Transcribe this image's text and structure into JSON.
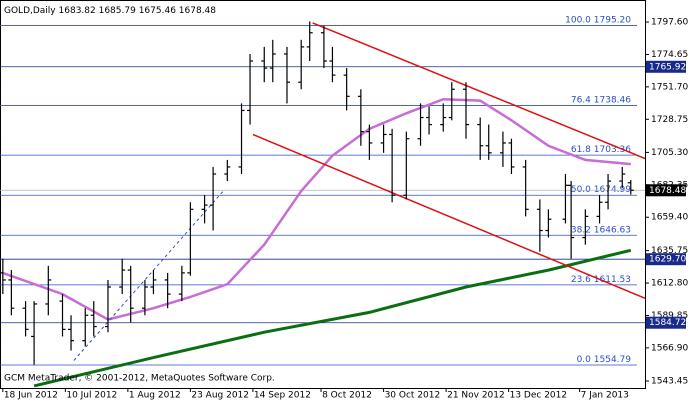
{
  "chart_data": {
    "type": "ohlc",
    "header": {
      "symbol": "GOLD,Daily",
      "values": [
        1683.82,
        1685.79,
        1675.46,
        1678.48
      ]
    },
    "footer": "GCM MetaTrader, © 2001-2012, MetaQuotes Software Corp.",
    "bar_color": "#000000",
    "xlim": [
      "2012-06-17",
      "2013-01-30"
    ],
    "ylim": [
      1538.5,
      1813.2
    ],
    "xticks": [
      {
        "value": "2012-06-18",
        "label": "18 Jun 2012"
      },
      {
        "value": "2012-07-10",
        "label": "10 Jul 2012"
      },
      {
        "value": "2012-08-01",
        "label": "1 Aug 2012"
      },
      {
        "value": "2012-08-23",
        "label": "23 Aug 2012"
      },
      {
        "value": "2012-09-14",
        "label": "14 Sep 2012"
      },
      {
        "value": "2012-10-08",
        "label": "8 Oct 2012"
      },
      {
        "value": "2012-10-30",
        "label": "30 Oct 2012"
      },
      {
        "value": "2012-11-21",
        "label": "21 Nov 2012"
      },
      {
        "value": "2012-12-13",
        "label": "13 Dec 2012"
      },
      {
        "value": "2013-01-07",
        "label": "7 Jan 2013"
      }
    ],
    "yticks": [
      {
        "value": 1797.6,
        "label": "1797.60"
      },
      1774.65,
      {
        "value": 1751.7,
        "label": "1751.70"
      },
      1728.75,
      {
        "value": 1705.3,
        "label": "1705.30"
      },
      1682.35,
      {
        "value": 1659.4,
        "label": "1659.40"
      },
      1635.75,
      {
        "value": 1612.8,
        "label": "1612.80"
      },
      1589.85,
      {
        "value": 1566.9,
        "label": "1566.90"
      },
      1543.45
    ],
    "x": [
      "2012-06-18",
      "2012-06-21",
      "2012-06-26",
      "2012-06-29",
      "2012-07-04",
      "2012-07-09",
      "2012-07-12",
      "2012-07-17",
      "2012-07-20",
      "2012-07-25",
      "2012-07-30",
      "2012-08-02",
      "2012-08-07",
      "2012-08-10",
      "2012-08-15",
      "2012-08-20",
      "2012-08-23",
      "2012-08-28",
      "2012-08-31",
      "2012-09-05",
      "2012-09-10",
      "2012-09-13",
      "2012-09-18",
      "2012-09-21",
      "2012-09-26",
      "2012-10-01",
      "2012-10-04",
      "2012-10-09",
      "2012-10-12",
      "2012-10-17",
      "2012-10-22",
      "2012-10-25",
      "2012-10-30",
      "2012-11-02",
      "2012-11-07",
      "2012-11-12",
      "2012-11-15",
      "2012-11-20",
      "2012-11-23",
      "2012-11-28",
      "2012-12-03",
      "2012-12-06",
      "2012-12-11",
      "2012-12-14",
      "2012-12-19",
      "2012-12-24",
      "2012-12-27",
      "2013-01-02",
      "2013-01-04",
      "2013-01-09",
      "2013-01-14",
      "2013-01-17",
      "2013-01-22",
      "2013-01-25"
    ],
    "open": [
      1620,
      1615,
      1595,
      1575,
      1598,
      1600,
      1580,
      1572,
      1590,
      1582,
      1610,
      1622,
      1595,
      1610,
      1615,
      1605,
      1620,
      1665,
      1668,
      1690,
      1695,
      1735,
      1770,
      1765,
      1775,
      1755,
      1780,
      1790,
      1770,
      1760,
      1745,
      1720,
      1712,
      1718,
      1675,
      1715,
      1730,
      1725,
      1730,
      1750,
      1725,
      1710,
      1705,
      1712,
      1695,
      1665,
      1650,
      1658,
      1682,
      1645,
      1660,
      1670,
      1685,
      1683.82
    ],
    "high": [
      1630,
      1622,
      1600,
      1600,
      1625,
      1605,
      1590,
      1595,
      1600,
      1615,
      1630,
      1625,
      1615,
      1622,
      1620,
      1625,
      1670,
      1675,
      1695,
      1700,
      1740,
      1775,
      1780,
      1785,
      1780,
      1785,
      1798,
      1795,
      1780,
      1765,
      1750,
      1725,
      1725,
      1722,
      1720,
      1740,
      1738,
      1740,
      1755,
      1755,
      1730,
      1725,
      1720,
      1715,
      1700,
      1672,
      1665,
      1690,
      1685,
      1665,
      1675,
      1690,
      1695,
      1685.79
    ],
    "low": [
      1605,
      1590,
      1575,
      1555,
      1590,
      1575,
      1565,
      1568,
      1575,
      1578,
      1605,
      1585,
      1590,
      1605,
      1595,
      1600,
      1618,
      1655,
      1650,
      1685,
      1690,
      1725,
      1755,
      1755,
      1740,
      1750,
      1770,
      1765,
      1755,
      1735,
      1710,
      1700,
      1705,
      1670,
      1672,
      1710,
      1718,
      1720,
      1728,
      1715,
      1700,
      1700,
      1695,
      1690,
      1660,
      1635,
      1645,
      1655,
      1630,
      1640,
      1655,
      1665,
      1680,
      1675.46
    ],
    "close": [
      1615,
      1595,
      1580,
      1598,
      1615,
      1580,
      1572,
      1590,
      1582,
      1610,
      1622,
      1595,
      1610,
      1615,
      1605,
      1620,
      1665,
      1668,
      1690,
      1695,
      1735,
      1770,
      1765,
      1775,
      1755,
      1780,
      1790,
      1770,
      1760,
      1745,
      1720,
      1712,
      1718,
      1675,
      1715,
      1730,
      1725,
      1730,
      1750,
      1725,
      1710,
      1705,
      1712,
      1695,
      1665,
      1650,
      1658,
      1682,
      1645,
      1660,
      1670,
      1685,
      1690,
      1678.48
    ],
    "lines": [
      {
        "color": "#c86cd6",
        "width": 2.5,
        "dash": false,
        "x": [
          "2012-06-18",
          "2012-07-09",
          "2012-07-25",
          "2012-08-10",
          "2012-08-23",
          "2012-09-05",
          "2012-09-18",
          "2012-10-01",
          "2012-10-12",
          "2012-10-25",
          "2012-11-07",
          "2012-11-20",
          "2012-12-03",
          "2012-12-14",
          "2012-12-27",
          "2013-01-09",
          "2013-01-25"
        ],
        "values": [
          1620,
          1605,
          1587,
          1595,
          1603,
          1612,
          1640,
          1678,
          1703,
          1722,
          1733,
          1743,
          1742,
          1728,
          1710,
          1700,
          1697
        ]
      },
      {
        "color": "#0a6e12",
        "width": 3,
        "dash": false,
        "x": [
          "2012-06-29",
          "2012-08-10",
          "2012-09-18",
          "2012-10-25",
          "2012-11-28",
          "2012-12-27",
          "2013-01-25"
        ],
        "values": [
          1540,
          1560,
          1578,
          1592,
          1610,
          1622,
          1636
        ]
      },
      {
        "color": "#e01010",
        "width": 1.5,
        "dash": false,
        "x": [
          "2012-10-05",
          "2013-01-30"
        ],
        "values": [
          1797,
          1701
        ]
      },
      {
        "color": "#e01010",
        "width": 1.5,
        "dash": false,
        "x": [
          "2012-09-14",
          "2013-01-30"
        ],
        "values": [
          1718,
          1602
        ]
      },
      {
        "color": "#2b4fc7",
        "width": 1,
        "dash": true,
        "x": [
          "2012-07-13",
          "2012-09-04"
        ],
        "values": [
          1558,
          1679
        ]
      }
    ],
    "levels": {
      "color": "#1a2a8a",
      "values": [
        1765.92,
        1629.7,
        1584.72
      ],
      "value_labels": [
        "1765.92",
        "1629.70",
        "1584.72"
      ]
    },
    "current": {
      "color": "#000000",
      "line_color": "#b0b0b0",
      "value": 1678.48
    },
    "fib": {
      "color": "#2b4fc7",
      "ratios": [
        "100.0",
        "76.4",
        "61.8",
        "50.0",
        "38.2",
        "23.6",
        "0.0"
      ],
      "values": [
        1795.2,
        1738.46,
        1703.36,
        1674.99,
        1646.63,
        1611.53,
        1554.79
      ],
      "value_labels": [
        "1795.20",
        "1738.46",
        "1703.36",
        "1674.99",
        "1646.63",
        "1611.53",
        "1554.79"
      ]
    }
  }
}
